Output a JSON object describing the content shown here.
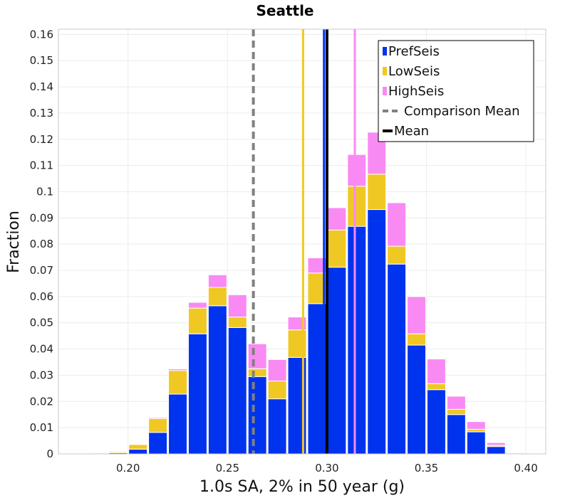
{
  "chart_data": {
    "type": "bar",
    "stacked": true,
    "title": "Seattle",
    "xlabel": "1.0s SA, 2% in 50 year (g)",
    "ylabel": "Fraction",
    "xlim": [
      0.165,
      0.41
    ],
    "ylim": [
      0,
      0.162
    ],
    "bin_width": 0.01,
    "x": [
      0.175,
      0.185,
      0.195,
      0.205,
      0.215,
      0.225,
      0.235,
      0.245,
      0.255,
      0.265,
      0.275,
      0.285,
      0.295,
      0.305,
      0.315,
      0.325,
      0.335,
      0.345,
      0.355,
      0.365,
      0.375,
      0.385,
      0.395
    ],
    "x_ticks": [
      0.2,
      0.25,
      0.3,
      0.35,
      0.4
    ],
    "x_tick_labels": [
      "0.20",
      "0.25",
      "0.30",
      "0.35",
      "0.40"
    ],
    "y_ticks": [
      0,
      0.01,
      0.02,
      0.03,
      0.04,
      0.05,
      0.06,
      0.07,
      0.08,
      0.09,
      0.1,
      0.11,
      0.12,
      0.13,
      0.14,
      0.15,
      0.16
    ],
    "y_tick_labels": [
      "0",
      "0.01",
      "0.02",
      "0.03",
      "0.04",
      "0.05",
      "0.06",
      "0.07",
      "0.08",
      "0.09",
      "0.1",
      "0.11",
      "0.12",
      "0.13",
      "0.14",
      "0.15",
      "0.16"
    ],
    "grid": true,
    "series": [
      {
        "name": "PrefSeis",
        "color": "#0033ee",
        "values": [
          0.0002,
          0.0003,
          0.0004,
          0.0018,
          0.0082,
          0.0228,
          0.0458,
          0.0565,
          0.0482,
          0.0295,
          0.021,
          0.0368,
          0.0573,
          0.0712,
          0.0868,
          0.0932,
          0.0724,
          0.0415,
          0.0245,
          0.015,
          0.0084,
          0.0028,
          0.0003
        ]
      },
      {
        "name": "LowSeis",
        "color": "#f0c823",
        "values": [
          0.0001,
          0.0002,
          0.0004,
          0.0018,
          0.0053,
          0.009,
          0.0098,
          0.007,
          0.004,
          0.003,
          0.0068,
          0.0105,
          0.0117,
          0.0142,
          0.0153,
          0.0135,
          0.0068,
          0.0043,
          0.0023,
          0.002,
          0.001,
          0.0005,
          0.0001
        ]
      },
      {
        "name": "HighSeis",
        "color": "#f98af3",
        "values": [
          0.0001,
          0.0001,
          0.0001,
          0.0001,
          0.0004,
          0.0006,
          0.0022,
          0.0048,
          0.0085,
          0.0095,
          0.0082,
          0.0049,
          0.0058,
          0.0085,
          0.0121,
          0.016,
          0.0166,
          0.0142,
          0.0094,
          0.005,
          0.0029,
          0.001,
          0.0002
        ]
      }
    ],
    "vertical_lines": [
      {
        "name": "Comparison Mean",
        "x": 0.263,
        "color": "#808080",
        "style": "dashed",
        "in_legend": true
      },
      {
        "name": "LowSeis Mean",
        "x": 0.288,
        "color": "#f0c823",
        "style": "solid",
        "in_legend": false
      },
      {
        "name": "PrefSeis Mean",
        "x": 0.2985,
        "color": "#0033ee",
        "style": "solid",
        "in_legend": false
      },
      {
        "name": "Mean",
        "x": 0.3,
        "color": "#000000",
        "style": "solid",
        "in_legend": true
      },
      {
        "name": "HighSeis Mean",
        "x": 0.314,
        "color": "#f98af3",
        "style": "solid",
        "in_legend": false
      }
    ],
    "legend": {
      "position": "top-right",
      "entries": [
        "PrefSeis",
        "LowSeis",
        "HighSeis",
        "Comparison Mean",
        "Mean"
      ]
    }
  }
}
